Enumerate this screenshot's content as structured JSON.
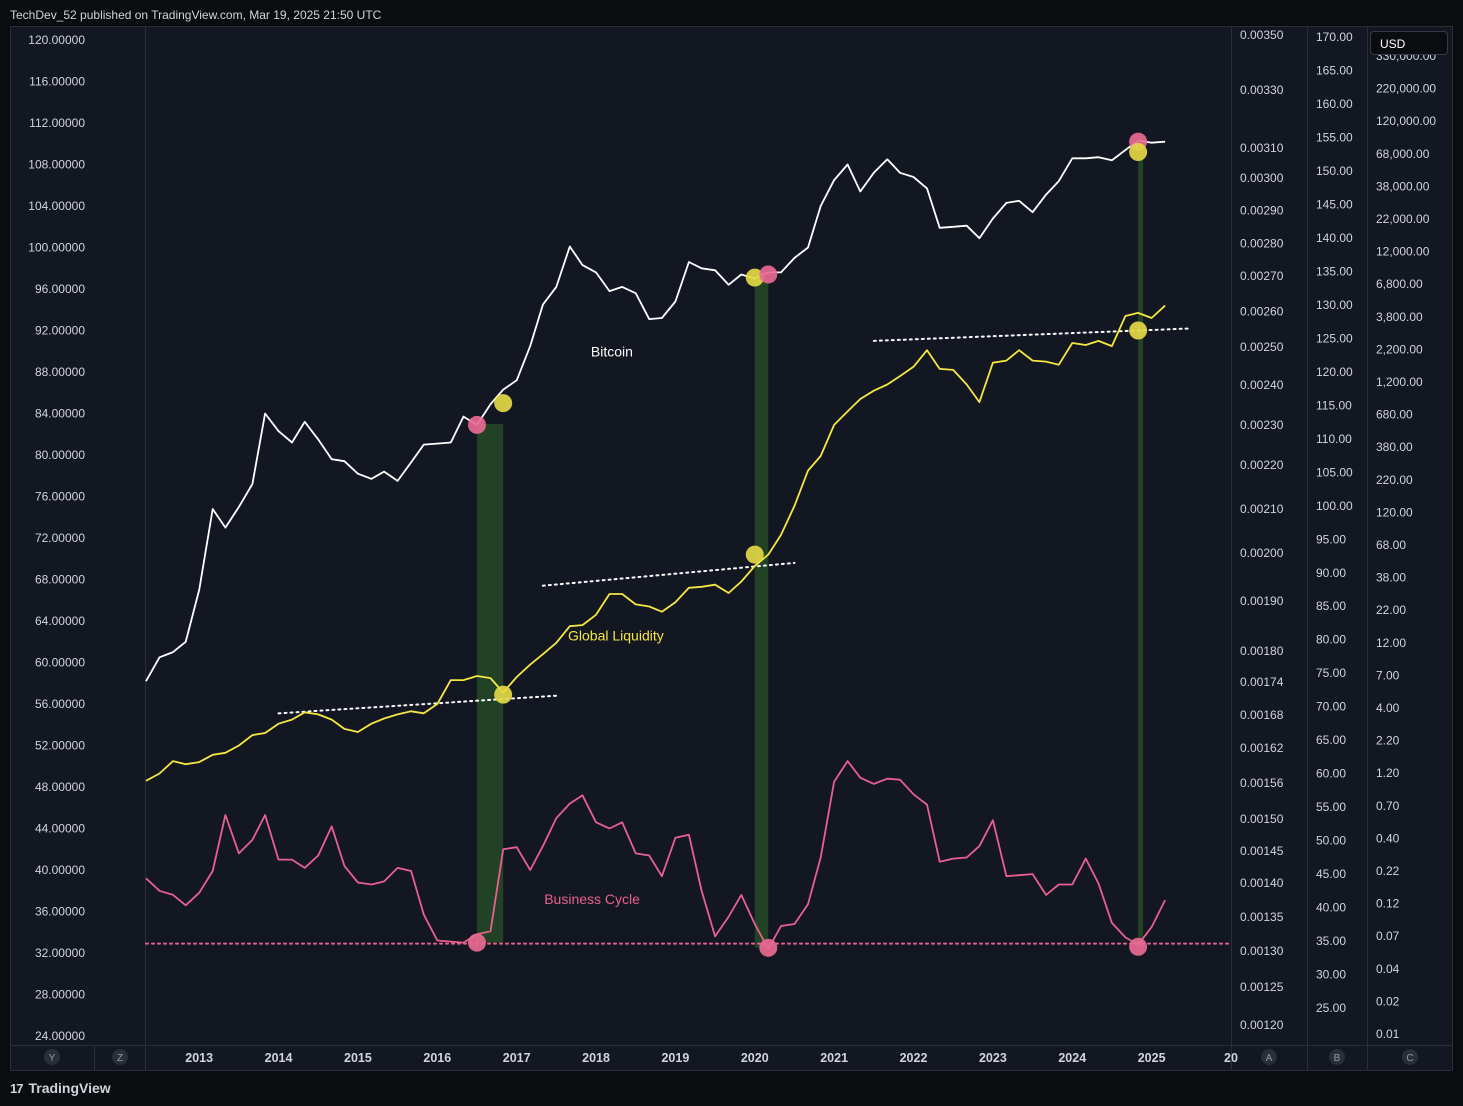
{
  "header": {
    "publisher_line": "TechDev_52 published on TradingView.com, Mar 19, 2025 21:50 UTC"
  },
  "footer": {
    "brand": "TradingView",
    "logo_glyph": "17"
  },
  "currency_button": "USD",
  "colors": {
    "background": "#131722",
    "bitcoin": "#ffffff",
    "global_liquidity": "#f5e642",
    "business_cycle": "#e8608f",
    "green_band": "#254a25",
    "marker_pink": "#e86a93",
    "marker_yellow": "#e3d845"
  },
  "chart_data": {
    "type": "line",
    "title": "",
    "x_axis": {
      "labels": [
        "2013",
        "2014",
        "2015",
        "2016",
        "2017",
        "2018",
        "2019",
        "2020",
        "2021",
        "2022",
        "2023",
        "2024",
        "2025",
        "20"
      ],
      "range": [
        2012.33,
        2026.0
      ]
    },
    "axes": {
      "Y": {
        "labels": [
          "120.00000",
          "116.00000",
          "112.00000",
          "108.00000",
          "104.00000",
          "100.00000",
          "96.00000",
          "92.00000",
          "88.00000",
          "84.00000",
          "80.00000",
          "76.00000",
          "72.00000",
          "68.00000",
          "64.00000",
          "60.00000",
          "56.00000",
          "52.00000",
          "48.00000",
          "44.00000",
          "40.00000",
          "36.00000",
          "32.00000",
          "28.00000",
          "24.00000"
        ],
        "range": [
          24,
          120
        ]
      },
      "A": {
        "labels": [
          "0.00350",
          "0.00330",
          "0.00310",
          "0.00300",
          "0.00290",
          "0.00280",
          "0.00270",
          "0.00260",
          "0.00250",
          "0.00240",
          "0.00230",
          "0.00220",
          "0.00210",
          "0.00200",
          "0.00190",
          "0.00180",
          "0.00174",
          "0.00168",
          "0.00162",
          "0.00156",
          "0.00150",
          "0.00145",
          "0.00140",
          "0.00135",
          "0.00130",
          "0.00125",
          "0.00120"
        ]
      },
      "B": {
        "labels": [
          "170.00",
          "165.00",
          "160.00",
          "155.00",
          "150.00",
          "145.00",
          "140.00",
          "135.00",
          "130.00",
          "125.00",
          "120.00",
          "115.00",
          "110.00",
          "105.00",
          "100.00",
          "95.00",
          "90.00",
          "85.00",
          "80.00",
          "75.00",
          "70.00",
          "65.00",
          "60.00",
          "55.00",
          "50.00",
          "45.00",
          "40.00",
          "35.00",
          "30.00",
          "25.00"
        ],
        "range": [
          20.83,
          170
        ]
      },
      "C": {
        "labels": [
          "330,000.00",
          "220,000.00",
          "120,000.00",
          "68,000.00",
          "38,000.00",
          "22,000.00",
          "12,000.00",
          "6,800.00",
          "3,800.00",
          "2,200.00",
          "1,200.00",
          "680.00",
          "380.00",
          "220.00",
          "120.00",
          "68.00",
          "38.00",
          "22.00",
          "12.00",
          "7.00",
          "4.00",
          "2.20",
          "1.20",
          "0.70",
          "0.40",
          "0.22",
          "0.12",
          "0.07",
          "0.04",
          "0.02",
          "0.01"
        ]
      }
    },
    "axis_buttons": {
      "Y": "Y",
      "Z": "Z",
      "A": "A",
      "B": "B",
      "C": "C"
    },
    "series": [
      {
        "name": "Bitcoin",
        "label": "Bitcoin",
        "scale": "Y",
        "x": [
          2012.33,
          2012.5,
          2012.67,
          2012.83,
          2013.0,
          2013.17,
          2013.33,
          2013.5,
          2013.67,
          2013.83,
          2014.0,
          2014.17,
          2014.33,
          2014.5,
          2014.67,
          2014.83,
          2015.0,
          2015.17,
          2015.33,
          2015.5,
          2015.67,
          2015.83,
          2016.0,
          2016.17,
          2016.33,
          2016.5,
          2016.67,
          2016.83,
          2017.0,
          2017.17,
          2017.33,
          2017.5,
          2017.67,
          2017.83,
          2018.0,
          2018.17,
          2018.33,
          2018.5,
          2018.67,
          2018.83,
          2019.0,
          2019.17,
          2019.33,
          2019.5,
          2019.67,
          2019.83,
          2020.0,
          2020.17,
          2020.33,
          2020.5,
          2020.67,
          2020.83,
          2021.0,
          2021.17,
          2021.33,
          2021.5,
          2021.67,
          2021.83,
          2022.0,
          2022.17,
          2022.33,
          2022.5,
          2022.67,
          2022.83,
          2023.0,
          2023.17,
          2023.33,
          2023.5,
          2023.67,
          2023.83,
          2024.0,
          2024.17,
          2024.33,
          2024.5,
          2024.67,
          2024.83,
          2025.0,
          2025.17
        ],
        "values": [
          58.2,
          60.5,
          61,
          62,
          67,
          74.8,
          73,
          75,
          77.2,
          84,
          82.3,
          81.2,
          83.2,
          81.5,
          79.6,
          79.4,
          78.2,
          77.7,
          78.4,
          77.5,
          79.3,
          81,
          81.1,
          81.2,
          83.7,
          82.9,
          84.9,
          86.3,
          87.2,
          90.5,
          94.5,
          96.2,
          100.1,
          98.3,
          97.6,
          95.8,
          96.2,
          95.6,
          93.1,
          93.2,
          94.8,
          98.6,
          98,
          97.8,
          96.4,
          97.4,
          97,
          97.6,
          97.6,
          99,
          100,
          104,
          106.5,
          108,
          105.4,
          107.2,
          108.5,
          107.2,
          106.8,
          105.7,
          101.9,
          102,
          102.1,
          100.9,
          102.8,
          104.3,
          104.5,
          103.4,
          105.1,
          106.4,
          108.6,
          108.6,
          108.7,
          108.4,
          109.4,
          110.3,
          110.1,
          110.2
        ]
      },
      {
        "name": "Global Liquidity",
        "label": "Global Liquidity",
        "scale": "Y",
        "x": [
          2012.33,
          2012.5,
          2012.67,
          2012.83,
          2013.0,
          2013.17,
          2013.33,
          2013.5,
          2013.67,
          2013.83,
          2014.0,
          2014.17,
          2014.33,
          2014.5,
          2014.67,
          2014.83,
          2015.0,
          2015.17,
          2015.33,
          2015.5,
          2015.67,
          2015.83,
          2016.0,
          2016.17,
          2016.33,
          2016.5,
          2016.67,
          2016.83,
          2017.0,
          2017.17,
          2017.33,
          2017.5,
          2017.67,
          2017.83,
          2018.0,
          2018.17,
          2018.33,
          2018.5,
          2018.67,
          2018.83,
          2019.0,
          2019.17,
          2019.33,
          2019.5,
          2019.67,
          2019.83,
          2020.0,
          2020.17,
          2020.33,
          2020.5,
          2020.67,
          2020.83,
          2021.0,
          2021.17,
          2021.33,
          2021.5,
          2021.67,
          2021.83,
          2022.0,
          2022.17,
          2022.33,
          2022.5,
          2022.67,
          2022.83,
          2023.0,
          2023.17,
          2023.33,
          2023.5,
          2023.67,
          2023.83,
          2024.0,
          2024.17,
          2024.33,
          2024.5,
          2024.67,
          2024.83,
          2025.0,
          2025.17
        ],
        "values": [
          48.6,
          49.3,
          50.5,
          50.2,
          50.4,
          51.1,
          51.3,
          52,
          53,
          53.2,
          54.1,
          54.5,
          55.2,
          55,
          54.5,
          53.6,
          53.3,
          54.1,
          54.6,
          55,
          55.3,
          55.1,
          56,
          58.3,
          58.3,
          58.7,
          58.5,
          57.1,
          58.6,
          59.8,
          60.8,
          61.9,
          63.5,
          63.6,
          64.6,
          66.6,
          66.6,
          65.6,
          65.4,
          64.9,
          65.8,
          67.2,
          67.3,
          67.5,
          66.7,
          67.8,
          69.3,
          70.4,
          72.3,
          75.1,
          78.5,
          79.9,
          82.9,
          84.2,
          85.4,
          86.2,
          86.8,
          87.6,
          88.5,
          90.1,
          88.3,
          88.2,
          86.8,
          85.1,
          88.9,
          89.1,
          90.1,
          89.1,
          89,
          88.7,
          90.8,
          90.6,
          91,
          90.5,
          93.4,
          93.7,
          93.2,
          94.4
        ]
      },
      {
        "name": "Business Cycle",
        "label": "Business Cycle",
        "scale": "Y",
        "x": [
          2012.33,
          2012.5,
          2012.67,
          2012.83,
          2013.0,
          2013.17,
          2013.33,
          2013.5,
          2013.67,
          2013.83,
          2014.0,
          2014.17,
          2014.33,
          2014.5,
          2014.67,
          2014.83,
          2015.0,
          2015.17,
          2015.33,
          2015.5,
          2015.67,
          2015.83,
          2016.0,
          2016.17,
          2016.33,
          2016.5,
          2016.67,
          2016.83,
          2017.0,
          2017.17,
          2017.33,
          2017.5,
          2017.67,
          2017.83,
          2018.0,
          2018.17,
          2018.33,
          2018.5,
          2018.67,
          2018.83,
          2019.0,
          2019.17,
          2019.33,
          2019.5,
          2019.67,
          2019.83,
          2020.0,
          2020.17,
          2020.33,
          2020.5,
          2020.67,
          2020.83,
          2021.0,
          2021.17,
          2021.33,
          2021.5,
          2021.67,
          2021.83,
          2022.0,
          2022.17,
          2022.33,
          2022.5,
          2022.67,
          2022.83,
          2023.0,
          2023.17,
          2023.33,
          2023.5,
          2023.67,
          2023.83,
          2024.0,
          2024.17,
          2024.33,
          2024.5,
          2024.67,
          2024.83,
          2025.0,
          2025.17
        ],
        "values": [
          39.2,
          38,
          37.6,
          36.6,
          37.8,
          39.9,
          45.3,
          41.6,
          42.9,
          45.3,
          41,
          41,
          40.2,
          41.4,
          44.2,
          40.4,
          38.8,
          38.6,
          38.9,
          40.2,
          39.9,
          35.7,
          33.2,
          33.1,
          33,
          33.8,
          34.1,
          42,
          42.2,
          40,
          42.3,
          45,
          46.4,
          47.2,
          44.6,
          44,
          44.6,
          41.6,
          41.4,
          39.4,
          43.1,
          43.4,
          38,
          33.6,
          35.5,
          37.6,
          34.8,
          32.4,
          34.6,
          34.8,
          36.7,
          41.2,
          48.5,
          50.5,
          48.9,
          48.3,
          48.8,
          48.7,
          47.3,
          46.3,
          40.8,
          41.1,
          41.2,
          42.3,
          44.8,
          39.4,
          39.5,
          39.6,
          37.6,
          38.6,
          38.6,
          41.1,
          38.7,
          34.9,
          33.5,
          32.8,
          34.5,
          37.1
        ]
      }
    ],
    "trendlines": [
      {
        "color": "white",
        "x": [
          2014.0,
          2017.5
        ],
        "y": [
          55.1,
          56.8
        ]
      },
      {
        "color": "white",
        "x": [
          2017.33,
          2020.5
        ],
        "y": [
          67.4,
          69.6
        ]
      },
      {
        "color": "white",
        "x": [
          2021.5,
          2025.5
        ],
        "y": [
          91.0,
          92.2
        ]
      },
      {
        "color": "pink",
        "x": [
          2012.33,
          2026.0
        ],
        "y": [
          32.9,
          32.9
        ]
      }
    ],
    "bands": [
      {
        "x": [
          2016.5,
          2016.83
        ],
        "y": [
          33.0,
          83.0
        ]
      },
      {
        "x": [
          2020.0,
          2020.17
        ],
        "y": [
          32.5,
          96.8
        ]
      },
      {
        "x": [
          2024.83,
          2024.88
        ],
        "y": [
          32.5,
          108.7
        ]
      }
    ],
    "markers": [
      {
        "color": "pink",
        "x": 2016.5,
        "y": 82.9
      },
      {
        "color": "yellow",
        "x": 2016.83,
        "y": 85.0
      },
      {
        "color": "yellow",
        "x": 2016.83,
        "y": 56.9
      },
      {
        "color": "pink",
        "x": 2016.5,
        "y": 33.0
      },
      {
        "color": "yellow",
        "x": 2020.0,
        "y": 97.1
      },
      {
        "color": "pink",
        "x": 2020.17,
        "y": 97.4
      },
      {
        "color": "yellow",
        "x": 2020.0,
        "y": 70.4
      },
      {
        "color": "pink",
        "x": 2020.17,
        "y": 32.5
      },
      {
        "color": "pink",
        "x": 2024.83,
        "y": 110.2
      },
      {
        "color": "yellow",
        "x": 2024.83,
        "y": 109.2
      },
      {
        "color": "yellow",
        "x": 2024.83,
        "y": 92.0
      },
      {
        "color": "pink",
        "x": 2024.83,
        "y": 32.6
      }
    ],
    "annotations": [
      {
        "text": "Bitcoin",
        "series": "Bitcoin",
        "x": 2018.2,
        "y": 89.5
      },
      {
        "text": "Global Liquidity",
        "series": "Global Liquidity",
        "x": 2018.25,
        "y": 62.1
      },
      {
        "text": "Business Cycle",
        "series": "Business Cycle",
        "x": 2017.95,
        "y": 36.7
      }
    ]
  }
}
